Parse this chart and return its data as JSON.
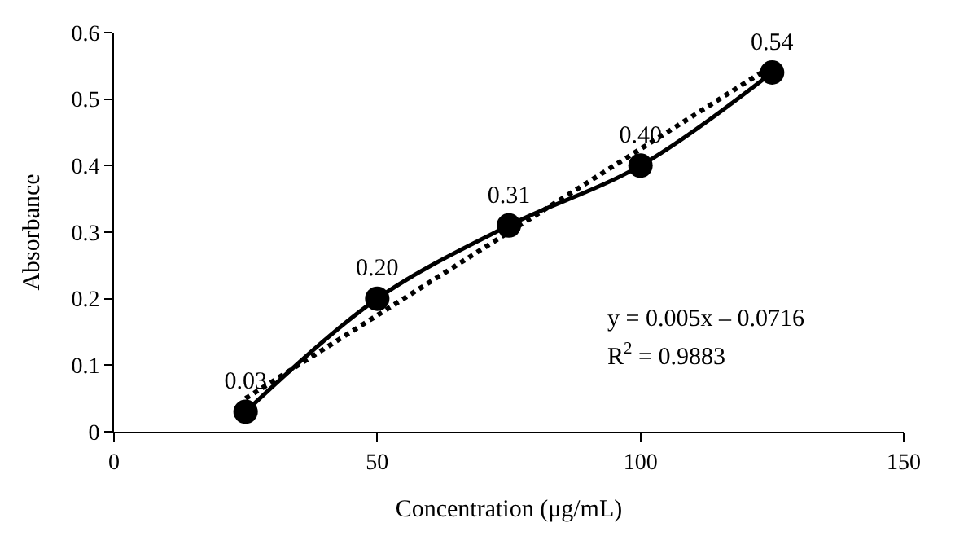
{
  "chart_data": {
    "type": "line",
    "xlabel": "Concentration (μg/mL)",
    "ylabel": "Absorbance",
    "x": [
      25,
      50,
      75,
      100,
      125
    ],
    "series": [
      {
        "color": "#000000",
        "values": [
          0.03,
          0.2,
          0.31,
          0.4,
          0.54
        ],
        "value_labels": [
          "0.03",
          "0.20",
          "0.31",
          "0.40",
          "0.54"
        ],
        "marker": "circle",
        "line_style": "solid"
      },
      {
        "type": "line",
        "color": "#000000",
        "x": [
          25,
          125
        ],
        "values": [
          0.05,
          0.55
        ],
        "marker": "none",
        "line_style": "dotted"
      }
    ],
    "xlim": [
      0,
      150
    ],
    "xticks": [
      0,
      50,
      100,
      150
    ],
    "ylim": [
      0,
      0.6
    ],
    "yticks": [
      0,
      {
        "value": 0.1,
        "label": "0.1"
      },
      {
        "value": 0.2,
        "label": "0.2"
      },
      {
        "value": 0.3,
        "label": "0.3"
      },
      {
        "value": 0.4,
        "label": "0.4"
      },
      {
        "value": 0.5,
        "label": "0.5"
      },
      {
        "value": 0.6,
        "label": "0.6"
      }
    ],
    "annotations": [
      "y = 0.005x – 0.0716",
      "R$^{2}$ = 0.9883"
    ]
  }
}
